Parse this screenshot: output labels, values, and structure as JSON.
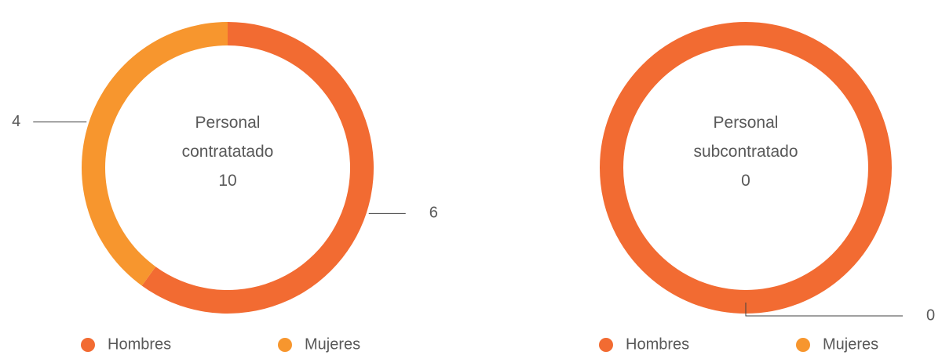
{
  "chart_data": [
    {
      "type": "donut",
      "center_label": "Personal contratatado",
      "center_value": 10,
      "categories": [
        "Hombres",
        "Mujeres"
      ],
      "colors": [
        "#f26b32",
        "#f7962e"
      ],
      "values": [
        6,
        4
      ]
    },
    {
      "type": "donut",
      "center_label": "Personal subcontratado",
      "center_value": 0,
      "categories": [
        "Hombres",
        "Mujeres"
      ],
      "colors": [
        "#f26b32",
        "#f7962e"
      ],
      "values": [
        0,
        0
      ]
    }
  ]
}
